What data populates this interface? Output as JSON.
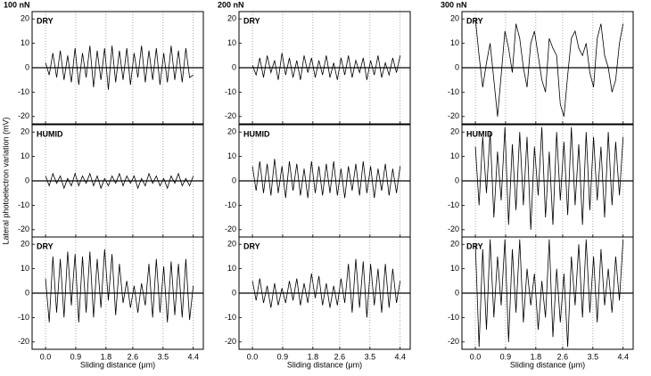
{
  "chart_data": [
    {
      "type": "line",
      "title": "100 nN",
      "label": "DRY",
      "x": [
        0,
        0.11,
        0.22,
        0.33,
        0.44,
        0.55,
        0.66,
        0.77,
        0.88,
        0.99,
        1.1,
        1.21,
        1.32,
        1.43,
        1.54,
        1.65,
        1.76,
        1.87,
        1.98,
        2.09,
        2.2,
        2.31,
        2.42,
        2.53,
        2.64,
        2.75,
        2.86,
        2.97,
        3.08,
        3.19,
        3.3,
        3.41,
        3.52,
        3.63,
        3.74,
        3.85,
        3.96,
        4.07,
        4.18,
        4.29,
        4.4
      ],
      "values": [
        2,
        -3,
        6,
        -4,
        7,
        -5,
        5,
        -6,
        8,
        -7,
        6,
        -4,
        9,
        -8,
        7,
        -5,
        8,
        -9,
        9,
        -6,
        7,
        -5,
        8,
        -7,
        6,
        -4,
        9,
        -6,
        7,
        -5,
        8,
        -7,
        6,
        -6,
        9,
        -5,
        7,
        -6,
        8,
        -4,
        -3
      ],
      "xlim": [
        -0.4,
        4.7
      ],
      "ylim": [
        -23,
        23
      ],
      "yticks": [
        -20,
        -10,
        0,
        10,
        20
      ],
      "color": "#000000"
    },
    {
      "type": "line",
      "label": "HUMID",
      "ylabel": "Lateral photoelectron variation (mV)",
      "x": [
        0,
        0.11,
        0.22,
        0.33,
        0.44,
        0.55,
        0.66,
        0.77,
        0.88,
        0.99,
        1.1,
        1.21,
        1.32,
        1.43,
        1.54,
        1.65,
        1.76,
        1.87,
        1.98,
        2.09,
        2.2,
        2.31,
        2.42,
        2.53,
        2.64,
        2.75,
        2.86,
        2.97,
        3.08,
        3.19,
        3.3,
        3.41,
        3.52,
        3.63,
        3.74,
        3.85,
        3.96,
        4.07,
        4.18,
        4.29,
        4.4
      ],
      "values": [
        2,
        -2,
        3,
        -1,
        2,
        -3,
        1,
        -2,
        3,
        -2,
        2,
        -1,
        3,
        -2,
        2,
        -3,
        1,
        -2,
        2,
        -1,
        3,
        -2,
        2,
        -1,
        2,
        -3,
        1,
        -2,
        3,
        -1,
        2,
        -2,
        1,
        -3,
        2,
        -1,
        3,
        -2,
        1,
        -2,
        2
      ],
      "xlim": [
        -0.4,
        4.7
      ],
      "ylim": [
        -23,
        23
      ],
      "yticks": [
        -20,
        -10,
        0,
        10,
        20
      ],
      "color": "#000000"
    },
    {
      "type": "line",
      "label": "DRY",
      "xlabel": "Sliding distance (μm)",
      "x": [
        0,
        0.11,
        0.22,
        0.33,
        0.44,
        0.55,
        0.66,
        0.77,
        0.88,
        0.99,
        1.1,
        1.21,
        1.32,
        1.43,
        1.54,
        1.65,
        1.76,
        1.87,
        1.98,
        2.09,
        2.2,
        2.31,
        2.42,
        2.53,
        2.64,
        2.75,
        2.86,
        2.97,
        3.08,
        3.19,
        3.3,
        3.41,
        3.52,
        3.63,
        3.74,
        3.85,
        3.96,
        4.07,
        4.18,
        4.29,
        4.4
      ],
      "values": [
        6,
        -12,
        15,
        -8,
        14,
        -10,
        17,
        -5,
        16,
        -12,
        15,
        -8,
        17,
        -10,
        14,
        -6,
        18,
        -3,
        16,
        -9,
        12,
        -4,
        5,
        -6,
        3,
        -8,
        4,
        -5,
        12,
        -10,
        14,
        -8,
        11,
        -12,
        13,
        -9,
        12,
        -10,
        14,
        -11,
        3
      ],
      "xlim": [
        -0.4,
        4.7
      ],
      "ylim": [
        -23,
        23
      ],
      "yticks": [
        -20,
        -10,
        0,
        10,
        20
      ],
      "xticks": [
        {
          "value": 0,
          "label": "0.0"
        },
        0.9,
        1.8,
        2.6,
        3.5,
        4.4
      ],
      "color": "#000000"
    },
    {
      "type": "line",
      "title": "200 nN",
      "label": "DRY",
      "x": [
        0,
        0.11,
        0.22,
        0.33,
        0.44,
        0.55,
        0.66,
        0.77,
        0.88,
        0.99,
        1.1,
        1.21,
        1.32,
        1.43,
        1.54,
        1.65,
        1.76,
        1.87,
        1.98,
        2.09,
        2.2,
        2.31,
        2.42,
        2.53,
        2.64,
        2.75,
        2.86,
        2.97,
        3.08,
        3.19,
        3.3,
        3.41,
        3.52,
        3.63,
        3.74,
        3.85,
        3.96,
        4.07,
        4.18,
        4.29,
        4.4
      ],
      "values": [
        1,
        -3,
        4,
        -4,
        5,
        -2,
        3,
        -5,
        6,
        -3,
        4,
        -4,
        3,
        -5,
        5,
        -2,
        4,
        -4,
        3,
        -3,
        5,
        -4,
        2,
        -5,
        4,
        -3,
        5,
        -4,
        3,
        -2,
        4,
        -5,
        3,
        -3,
        5,
        -4,
        2,
        -3,
        4,
        -2,
        5
      ],
      "xlim": [
        -0.4,
        4.7
      ],
      "ylim": [
        -23,
        23
      ],
      "yticks": [
        -20,
        -10,
        0,
        10,
        20
      ],
      "color": "#000000"
    },
    {
      "type": "line",
      "label": "HUMID",
      "x": [
        0,
        0.11,
        0.22,
        0.33,
        0.44,
        0.55,
        0.66,
        0.77,
        0.88,
        0.99,
        1.1,
        1.21,
        1.32,
        1.43,
        1.54,
        1.65,
        1.76,
        1.87,
        1.98,
        2.09,
        2.2,
        2.31,
        2.42,
        2.53,
        2.64,
        2.75,
        2.86,
        2.97,
        3.08,
        3.19,
        3.3,
        3.41,
        3.52,
        3.63,
        3.74,
        3.85,
        3.96,
        4.07,
        4.18,
        4.29,
        4.4
      ],
      "values": [
        6,
        -4,
        8,
        -5,
        7,
        -6,
        9,
        -5,
        6,
        -7,
        8,
        -4,
        7,
        -6,
        5,
        -7,
        8,
        -5,
        6,
        -6,
        7,
        -5,
        8,
        -6,
        5,
        -7,
        6,
        -4,
        7,
        -6,
        8,
        -5,
        6,
        -7,
        5,
        -4,
        7,
        -6,
        5,
        -5,
        6
      ],
      "xlim": [
        -0.4,
        4.7
      ],
      "ylim": [
        -23,
        23
      ],
      "yticks": [
        -20,
        -10,
        0,
        10,
        20
      ],
      "color": "#000000"
    },
    {
      "type": "line",
      "label": "DRY",
      "xlabel": "Sliding distance (μm)",
      "x": [
        0,
        0.11,
        0.22,
        0.33,
        0.44,
        0.55,
        0.66,
        0.77,
        0.88,
        0.99,
        1.1,
        1.21,
        1.32,
        1.43,
        1.54,
        1.65,
        1.76,
        1.87,
        1.98,
        2.09,
        2.2,
        2.31,
        2.42,
        2.53,
        2.64,
        2.75,
        2.86,
        2.97,
        3.08,
        3.19,
        3.3,
        3.41,
        3.52,
        3.63,
        3.74,
        3.85,
        3.96,
        4.07,
        4.18,
        4.29,
        4.4
      ],
      "values": [
        5,
        -3,
        6,
        -4,
        3,
        -6,
        4,
        -5,
        2,
        -4,
        5,
        -3,
        6,
        -5,
        4,
        -4,
        8,
        -2,
        7,
        -5,
        4,
        -6,
        3,
        -5,
        6,
        -4,
        12,
        -8,
        14,
        -6,
        13,
        -10,
        12,
        -5,
        10,
        -8,
        12,
        -6,
        10,
        -4,
        5
      ],
      "xlim": [
        -0.4,
        4.7
      ],
      "ylim": [
        -23,
        23
      ],
      "yticks": [
        -20,
        -10,
        0,
        10,
        20
      ],
      "xticks": [
        {
          "value": 0,
          "label": "0.0"
        },
        0.9,
        1.8,
        2.6,
        3.5,
        4.4
      ],
      "color": "#000000"
    },
    {
      "type": "line",
      "title": "300 nN",
      "label": "DRY",
      "x": [
        0,
        0.11,
        0.22,
        0.33,
        0.44,
        0.55,
        0.66,
        0.77,
        0.88,
        0.99,
        1.1,
        1.21,
        1.32,
        1.43,
        1.54,
        1.65,
        1.76,
        1.87,
        1.98,
        2.09,
        2.2,
        2.31,
        2.42,
        2.53,
        2.64,
        2.75,
        2.86,
        2.97,
        3.08,
        3.19,
        3.3,
        3.41,
        3.52,
        3.63,
        3.74,
        3.85,
        3.96,
        4.07,
        4.18,
        4.29,
        4.4
      ],
      "values": [
        20,
        5,
        -8,
        2,
        10,
        -5,
        -20,
        -3,
        15,
        8,
        -2,
        18,
        12,
        0,
        -8,
        10,
        15,
        5,
        -5,
        -10,
        12,
        8,
        5,
        -15,
        -20,
        -3,
        12,
        15,
        8,
        5,
        10,
        -2,
        -8,
        12,
        18,
        5,
        0,
        -10,
        -5,
        10,
        18
      ],
      "xlim": [
        -0.4,
        4.7
      ],
      "ylim": [
        -23,
        23
      ],
      "yticks": [
        -20,
        -10,
        0,
        10,
        20
      ],
      "color": "#000000"
    },
    {
      "type": "line",
      "label": "HUMID",
      "x": [
        0,
        0.11,
        0.22,
        0.33,
        0.44,
        0.55,
        0.66,
        0.77,
        0.88,
        0.99,
        1.1,
        1.21,
        1.32,
        1.43,
        1.54,
        1.65,
        1.76,
        1.87,
        1.98,
        2.09,
        2.2,
        2.31,
        2.42,
        2.53,
        2.64,
        2.75,
        2.86,
        2.97,
        3.08,
        3.19,
        3.3,
        3.41,
        3.52,
        3.63,
        3.74,
        3.85,
        3.96,
        4.07,
        4.18,
        4.29,
        4.4
      ],
      "values": [
        14,
        -10,
        18,
        -5,
        20,
        -15,
        12,
        -8,
        22,
        -18,
        15,
        -12,
        20,
        -10,
        18,
        -20,
        14,
        -6,
        22,
        -15,
        12,
        -18,
        20,
        -8,
        16,
        -14,
        22,
        -10,
        15,
        -18,
        20,
        -12,
        18,
        -8,
        14,
        -15,
        20,
        -10,
        16,
        -6,
        18
      ],
      "xlim": [
        -0.4,
        4.7
      ],
      "ylim": [
        -23,
        23
      ],
      "yticks": [
        -20,
        -10,
        0,
        10,
        20
      ],
      "color": "#000000"
    },
    {
      "type": "line",
      "label": "DRY",
      "xlabel": "Sliding distance (μm)",
      "x": [
        0,
        0.11,
        0.22,
        0.33,
        0.44,
        0.55,
        0.66,
        0.77,
        0.88,
        0.99,
        1.1,
        1.21,
        1.32,
        1.43,
        1.54,
        1.65,
        1.76,
        1.87,
        1.98,
        2.09,
        2.2,
        2.31,
        2.42,
        2.53,
        2.64,
        2.75,
        2.86,
        2.97,
        3.08,
        3.19,
        3.3,
        3.41,
        3.52,
        3.63,
        3.74,
        3.85,
        3.96,
        4.07,
        4.18,
        4.29,
        4.4
      ],
      "values": [
        20,
        -22,
        18,
        -15,
        22,
        -10,
        15,
        -5,
        22,
        -20,
        18,
        -8,
        22,
        -12,
        10,
        -5,
        8,
        -15,
        5,
        -10,
        22,
        -18,
        10,
        -12,
        8,
        -22,
        15,
        -5,
        20,
        -10,
        22,
        -8,
        15,
        -12,
        18,
        -5,
        10,
        -8,
        15,
        -3,
        22
      ],
      "xlim": [
        -0.4,
        4.7
      ],
      "ylim": [
        -23,
        23
      ],
      "yticks": [
        -20,
        -10,
        0,
        10,
        20
      ],
      "xticks": [
        {
          "value": 0,
          "label": "0.0"
        },
        0.9,
        1.8,
        2.6,
        3.5,
        4.4
      ],
      "color": "#000000"
    }
  ]
}
